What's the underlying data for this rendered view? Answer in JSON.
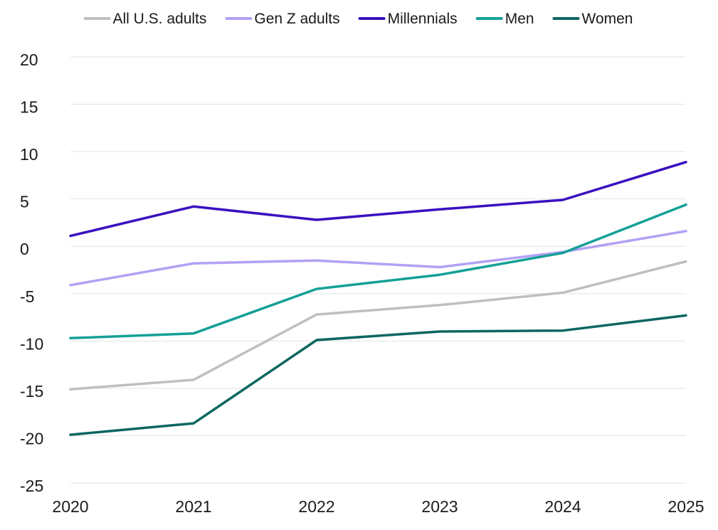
{
  "chart_data": {
    "type": "line",
    "title": "",
    "xlabel": "",
    "ylabel": "",
    "x": [
      "2020",
      "2021",
      "2022",
      "2023",
      "2024",
      "2025"
    ],
    "ylim": [
      -25,
      20
    ],
    "yticks": [
      "20",
      "15",
      "10",
      "5",
      "0",
      "-5",
      "-10",
      "-15",
      "-20",
      "-25"
    ],
    "ytick_values": [
      20,
      15,
      10,
      5,
      0,
      -5,
      -10,
      -15,
      -20,
      -25
    ],
    "grid": "horizontal",
    "legend_position": "top",
    "series": [
      {
        "name": "All U.S. adults",
        "color": "#bfbfbf",
        "values": [
          -15.1,
          -14.1,
          -7.2,
          -6.2,
          -4.9,
          -1.6
        ]
      },
      {
        "name": "Gen Z adults",
        "color": "#b4a0f5",
        "values": [
          -4.1,
          -1.8,
          -1.5,
          -2.2,
          -0.6,
          1.6
        ]
      },
      {
        "name": "Millennials",
        "color": "#3a10c0",
        "values": [
          1.1,
          4.2,
          2.8,
          3.9,
          4.9,
          8.9
        ]
      },
      {
        "name": "Men",
        "color": "#14a097",
        "values": [
          -9.7,
          -9.2,
          -4.5,
          -3.0,
          -0.7,
          4.4
        ]
      },
      {
        "name": "Women",
        "color": "#0d6660",
        "values": [
          -19.9,
          -18.7,
          -9.9,
          -9.0,
          -8.9,
          -7.3
        ]
      }
    ]
  }
}
